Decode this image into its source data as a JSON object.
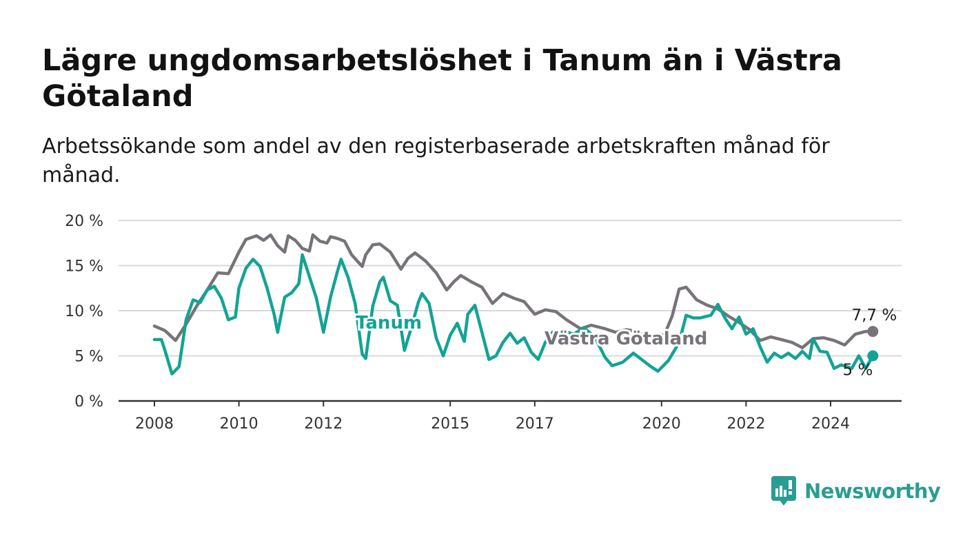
{
  "title": "Lägre ungdomsarbetslöshet i Tanum än i Västra Götaland",
  "subtitle": "Arbetssökande som andel av den registerbaserade arbetskraften månad för månad.",
  "brand": {
    "name": "Newsworthy",
    "color": "#2a9d92"
  },
  "colors": {
    "tanum": "#13a395",
    "vastra_gotaland": "#777379",
    "grid": "#d9d9d9",
    "axis": "#333333"
  },
  "chart_data": {
    "type": "line",
    "title": "Lägre ungdomsarbetslöshet i Tanum än i Västra Götaland",
    "subtitle": "Arbetssökande som andel av den registerbaserade arbetskraften månad för månad.",
    "xlabel": "",
    "ylabel": "",
    "ylim": [
      0,
      20
    ],
    "xlim": [
      "2007-09",
      "2025-07"
    ],
    "y_ticks": [
      {
        "value": 0,
        "label": "0 %"
      },
      {
        "value": 5,
        "label": "5 %"
      },
      {
        "value": 10,
        "label": "10 %"
      },
      {
        "value": 15,
        "label": "15 %"
      },
      {
        "value": 20,
        "label": "20 %"
      }
    ],
    "x_ticks": [
      {
        "value": "2008-01",
        "label": "2008"
      },
      {
        "value": "2010-01",
        "label": "2010"
      },
      {
        "value": "2012-01",
        "label": "2012"
      },
      {
        "value": "2015-01",
        "label": "2015"
      },
      {
        "value": "2017-01",
        "label": "2017"
      },
      {
        "value": "2020-01",
        "label": "2020"
      },
      {
        "value": "2022-01",
        "label": "2022"
      },
      {
        "value": "2024-01",
        "label": "2024"
      }
    ],
    "grid": true,
    "series": [
      {
        "name": "Västra Götaland",
        "color": "#777379",
        "end_label": "7,7 %",
        "points": [
          [
            "2008-01",
            8.3
          ],
          [
            "2008-04",
            7.8
          ],
          [
            "2008-07",
            6.7
          ],
          [
            "2008-10",
            8.5
          ],
          [
            "2009-01",
            10.5
          ],
          [
            "2009-04",
            12.3
          ],
          [
            "2009-07",
            14.2
          ],
          [
            "2009-10",
            14.1
          ],
          [
            "2010-01",
            16.5
          ],
          [
            "2010-03",
            17.9
          ],
          [
            "2010-06",
            18.3
          ],
          [
            "2010-08",
            17.8
          ],
          [
            "2010-10",
            18.4
          ],
          [
            "2010-12",
            17.2
          ],
          [
            "2011-02",
            16.5
          ],
          [
            "2011-03",
            18.3
          ],
          [
            "2011-05",
            17.8
          ],
          [
            "2011-07",
            16.9
          ],
          [
            "2011-09",
            16.6
          ],
          [
            "2011-10",
            18.4
          ],
          [
            "2011-12",
            17.7
          ],
          [
            "2012-02",
            17.5
          ],
          [
            "2012-03",
            18.2
          ],
          [
            "2012-05",
            18.0
          ],
          [
            "2012-07",
            17.7
          ],
          [
            "2012-09",
            16.2
          ],
          [
            "2012-12",
            14.9
          ],
          [
            "2013-01",
            16.2
          ],
          [
            "2013-03",
            17.3
          ],
          [
            "2013-05",
            17.4
          ],
          [
            "2013-08",
            16.5
          ],
          [
            "2013-11",
            14.6
          ],
          [
            "2014-01",
            15.8
          ],
          [
            "2014-03",
            16.4
          ],
          [
            "2014-06",
            15.5
          ],
          [
            "2014-09",
            14.2
          ],
          [
            "2014-12",
            12.3
          ],
          [
            "2015-02",
            13.2
          ],
          [
            "2015-04",
            13.9
          ],
          [
            "2015-07",
            13.2
          ],
          [
            "2015-10",
            12.6
          ],
          [
            "2016-01",
            10.8
          ],
          [
            "2016-04",
            11.9
          ],
          [
            "2016-07",
            11.4
          ],
          [
            "2016-10",
            11.0
          ],
          [
            "2017-01",
            9.6
          ],
          [
            "2017-04",
            10.1
          ],
          [
            "2017-07",
            9.9
          ],
          [
            "2017-10",
            9.0
          ],
          [
            "2017-12",
            8.5
          ],
          [
            "2018-02",
            8.0
          ],
          [
            "2018-05",
            8.4
          ],
          [
            "2018-09",
            8.0
          ],
          [
            "2018-12",
            7.6
          ],
          [
            "2019-03",
            7.9
          ],
          [
            "2019-06",
            7.7
          ],
          [
            "2019-09",
            7.1
          ],
          [
            "2019-12",
            6.9
          ],
          [
            "2020-02",
            7.5
          ],
          [
            "2020-04",
            9.4
          ],
          [
            "2020-06",
            12.4
          ],
          [
            "2020-08",
            12.6
          ],
          [
            "2020-11",
            11.2
          ],
          [
            "2021-02",
            10.6
          ],
          [
            "2021-05",
            10.2
          ],
          [
            "2021-08",
            9.4
          ],
          [
            "2021-11",
            8.7
          ],
          [
            "2022-02",
            7.9
          ],
          [
            "2022-05",
            6.7
          ],
          [
            "2022-08",
            7.1
          ],
          [
            "2022-11",
            6.8
          ],
          [
            "2023-02",
            6.5
          ],
          [
            "2023-05",
            5.9
          ],
          [
            "2023-08",
            6.9
          ],
          [
            "2023-11",
            7.0
          ],
          [
            "2024-02",
            6.7
          ],
          [
            "2024-05",
            6.2
          ],
          [
            "2024-08",
            7.4
          ],
          [
            "2024-11",
            7.7
          ],
          [
            "2025-01",
            7.7
          ]
        ]
      },
      {
        "name": "Tanum",
        "color": "#13a395",
        "end_label": "5 %",
        "points": [
          [
            "2008-01",
            6.8
          ],
          [
            "2008-03",
            6.8
          ],
          [
            "2008-04",
            5.6
          ],
          [
            "2008-06",
            3.0
          ],
          [
            "2008-08",
            3.8
          ],
          [
            "2008-10",
            9.0
          ],
          [
            "2008-12",
            11.2
          ],
          [
            "2009-02",
            10.9
          ],
          [
            "2009-04",
            12.3
          ],
          [
            "2009-06",
            12.7
          ],
          [
            "2009-08",
            11.4
          ],
          [
            "2009-10",
            9.0
          ],
          [
            "2009-12",
            9.3
          ],
          [
            "2010-01",
            12.5
          ],
          [
            "2010-03",
            14.7
          ],
          [
            "2010-05",
            15.7
          ],
          [
            "2010-07",
            14.9
          ],
          [
            "2010-09",
            12.5
          ],
          [
            "2010-11",
            9.6
          ],
          [
            "2010-12",
            7.6
          ],
          [
            "2011-02",
            11.5
          ],
          [
            "2011-04",
            12.0
          ],
          [
            "2011-06",
            13.0
          ],
          [
            "2011-07",
            16.2
          ],
          [
            "2011-09",
            13.8
          ],
          [
            "2011-11",
            11.4
          ],
          [
            "2012-01",
            7.6
          ],
          [
            "2012-03",
            11.5
          ],
          [
            "2012-05",
            14.4
          ],
          [
            "2012-06",
            15.7
          ],
          [
            "2012-08",
            13.7
          ],
          [
            "2012-10",
            10.8
          ],
          [
            "2012-12",
            5.2
          ],
          [
            "2013-01",
            4.7
          ],
          [
            "2013-03",
            10.5
          ],
          [
            "2013-05",
            13.2
          ],
          [
            "2013-06",
            13.7
          ],
          [
            "2013-08",
            11.1
          ],
          [
            "2013-10",
            10.6
          ],
          [
            "2013-12",
            5.6
          ],
          [
            "2014-02",
            8.2
          ],
          [
            "2014-04",
            11.0
          ],
          [
            "2014-05",
            11.9
          ],
          [
            "2014-07",
            10.8
          ],
          [
            "2014-09",
            7.0
          ],
          [
            "2014-11",
            5.0
          ],
          [
            "2015-01",
            7.3
          ],
          [
            "2015-03",
            8.6
          ],
          [
            "2015-05",
            6.6
          ],
          [
            "2015-06",
            9.6
          ],
          [
            "2015-08",
            10.6
          ],
          [
            "2015-10",
            7.6
          ],
          [
            "2015-12",
            4.6
          ],
          [
            "2016-02",
            5.0
          ],
          [
            "2016-04",
            6.5
          ],
          [
            "2016-06",
            7.5
          ],
          [
            "2016-08",
            6.4
          ],
          [
            "2016-10",
            7.0
          ],
          [
            "2016-12",
            5.4
          ],
          [
            "2017-02",
            4.6
          ],
          [
            "2017-04",
            6.5
          ],
          [
            "2017-06",
            7.6
          ],
          [
            "2017-09",
            7.8
          ],
          [
            "2017-12",
            7.4
          ],
          [
            "2018-03",
            8.1
          ],
          [
            "2018-06",
            7.1
          ],
          [
            "2018-09",
            4.8
          ],
          [
            "2018-11",
            3.9
          ],
          [
            "2019-02",
            4.3
          ],
          [
            "2019-05",
            5.3
          ],
          [
            "2019-08",
            4.4
          ],
          [
            "2019-10",
            3.8
          ],
          [
            "2019-12",
            3.3
          ],
          [
            "2020-03",
            4.5
          ],
          [
            "2020-06",
            6.5
          ],
          [
            "2020-08",
            9.5
          ],
          [
            "2020-10",
            9.2
          ],
          [
            "2020-12",
            9.2
          ],
          [
            "2021-03",
            9.5
          ],
          [
            "2021-05",
            10.7
          ],
          [
            "2021-07",
            9.2
          ],
          [
            "2021-09",
            8.0
          ],
          [
            "2021-11",
            9.3
          ],
          [
            "2022-01",
            7.4
          ],
          [
            "2022-03",
            8.0
          ],
          [
            "2022-05",
            6.0
          ],
          [
            "2022-07",
            4.3
          ],
          [
            "2022-09",
            5.3
          ],
          [
            "2022-11",
            4.8
          ],
          [
            "2023-01",
            5.3
          ],
          [
            "2023-03",
            4.7
          ],
          [
            "2023-05",
            5.5
          ],
          [
            "2023-07",
            4.7
          ],
          [
            "2023-08",
            6.9
          ],
          [
            "2023-10",
            5.5
          ],
          [
            "2023-12",
            5.4
          ],
          [
            "2024-02",
            3.6
          ],
          [
            "2024-04",
            4.0
          ],
          [
            "2024-07",
            3.6
          ],
          [
            "2024-09",
            5.0
          ],
          [
            "2024-11",
            3.6
          ],
          [
            "2025-01",
            5.0
          ]
        ]
      }
    ]
  }
}
